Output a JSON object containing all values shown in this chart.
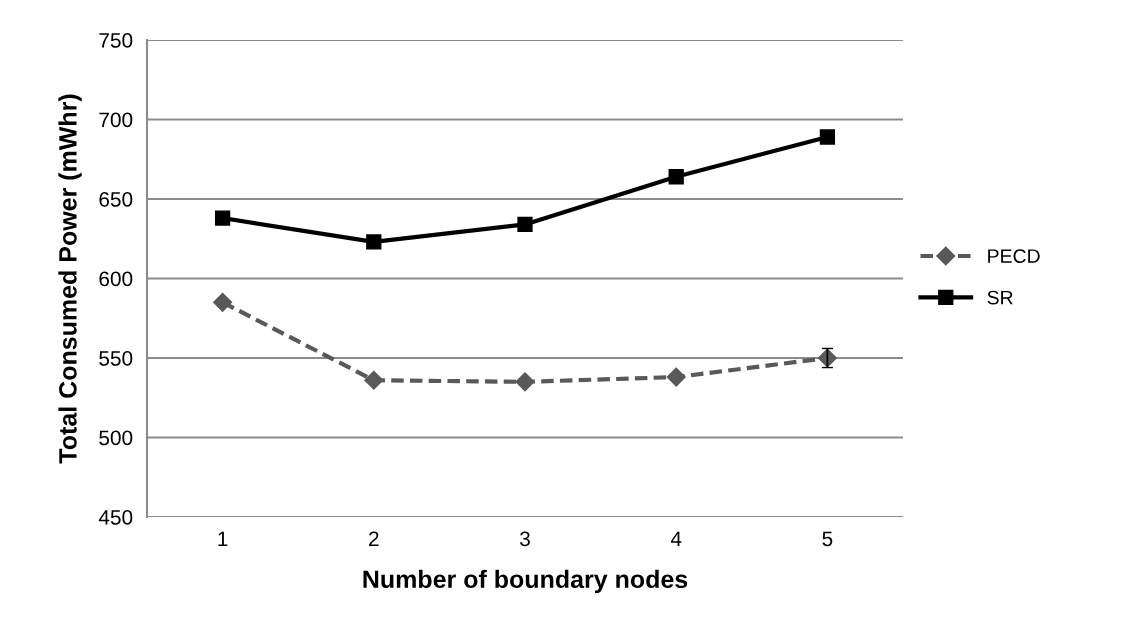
{
  "chart_data": {
    "type": "line",
    "xlabel": "Number of boundary nodes",
    "ylabel": "Total Consumed Power (mWhr)",
    "categories": [
      "1",
      "2",
      "3",
      "4",
      "5"
    ],
    "series": [
      {
        "name": "PECD",
        "color": "#595959",
        "values": [
          585,
          536,
          535,
          538,
          550
        ],
        "errors": [
          null,
          null,
          null,
          null,
          6
        ],
        "marker": "diamond",
        "line_style": "dashed"
      },
      {
        "name": "SR",
        "color": "#000000",
        "values": [
          638,
          623,
          634,
          664,
          689
        ],
        "marker": "square",
        "line_style": "solid"
      }
    ],
    "ylim": [
      450,
      750
    ],
    "yticks": [
      450,
      500,
      550,
      600,
      650,
      700,
      750
    ],
    "grid": "y",
    "legend": "right"
  }
}
